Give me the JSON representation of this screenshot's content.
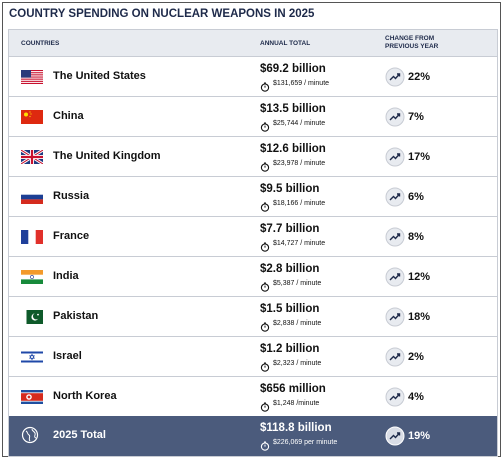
{
  "title": "COUNTRY SPENDING ON NUCLEAR WEAPONS IN 2025",
  "table": {
    "headers": [
      "COUNTRIES",
      "ANNUAL TOTAL",
      "CHANGE FROM PREVIOUS YEAR"
    ],
    "rows": [
      {
        "country": "The United States",
        "total": "$69.2 billion",
        "per_minute": "$131,659 / minute",
        "change": "22%"
      },
      {
        "country": "China",
        "total": "$13.5 billion",
        "per_minute": "$25,744 / minute",
        "change": "7%"
      },
      {
        "country": "The United Kingdom",
        "total": "$12.6 billion",
        "per_minute": "$23,978 / minute",
        "change": "17%"
      },
      {
        "country": "Russia",
        "total": "$9.5 billion",
        "per_minute": "$18,166 / minute",
        "change": "6%"
      },
      {
        "country": "France",
        "total": "$7.7 billion",
        "per_minute": "$14,727 / minute",
        "change": "8%"
      },
      {
        "country": "India",
        "total": "$2.8 billion",
        "per_minute": "$5,387 / minute",
        "change": "12%"
      },
      {
        "country": "Pakistan",
        "total": "$1.5 billion",
        "per_minute": "$2,838 / minute",
        "change": "18%"
      },
      {
        "country": "Israel",
        "total": "$1.2 billion",
        "per_minute": "$2,323 / minute",
        "change": "2%"
      },
      {
        "country": "North Korea",
        "total": "$656 million",
        "per_minute": "$1,248 /minute",
        "change": "4%"
      }
    ],
    "total": {
      "country": "2025 Total",
      "total": "$118.8 billion",
      "per_minute": "$226,069 per minute",
      "change": "19%"
    }
  }
}
